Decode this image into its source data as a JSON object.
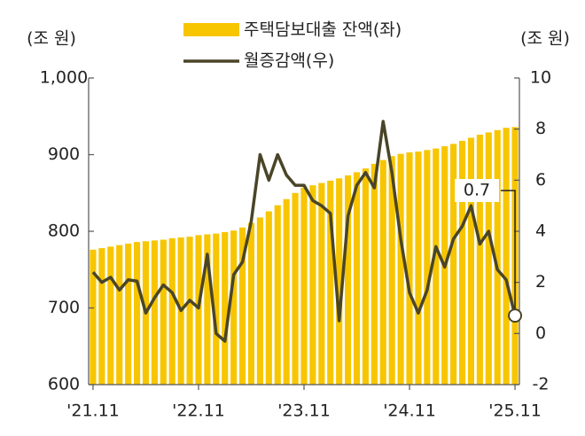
{
  "chart_data": {
    "type": "bar-line",
    "legend": "top",
    "y_label": "(조 원)",
    "y2_label": "(조 원)",
    "categories": [
      "'21.11",
      null,
      null,
      null,
      null,
      null,
      null,
      null,
      null,
      null,
      null,
      null,
      "'22.11",
      null,
      null,
      null,
      null,
      null,
      null,
      null,
      null,
      null,
      null,
      null,
      "'23.11",
      null,
      null,
      null,
      null,
      null,
      null,
      null,
      null,
      null,
      null,
      null,
      "'24.11",
      null,
      null,
      null,
      null,
      null,
      null,
      null,
      null,
      null,
      null,
      null,
      "'25.11"
    ],
    "series": [
      {
        "name": "주택담보대출 잔액(좌)",
        "type": "bar",
        "color": "#f7c600",
        "axis": "y",
        "values": [
          776,
          778,
          780,
          782,
          784,
          786,
          787,
          788,
          789,
          791,
          792,
          793,
          795,
          796,
          797,
          799,
          801,
          805,
          811,
          818,
          826,
          834,
          842,
          850,
          857,
          860,
          863,
          866,
          869,
          873,
          877,
          882,
          888,
          893,
          898,
          901,
          903,
          904,
          906,
          908,
          911,
          914,
          918,
          922,
          926,
          929,
          932,
          935,
          936
        ]
      },
      {
        "name": "월증감액(우)",
        "type": "line",
        "color": "#4a4528",
        "axis": "y2",
        "values": [
          2.4,
          2.0,
          2.2,
          1.7,
          2.1,
          2.05,
          0.8,
          1.4,
          1.9,
          1.6,
          0.9,
          1.3,
          1.0,
          3.1,
          0.0,
          -0.3,
          2.3,
          2.8,
          4.4,
          7.0,
          6.0,
          7.0,
          6.2,
          5.8,
          5.8,
          5.2,
          5.0,
          4.7,
          0.5,
          4.6,
          5.8,
          6.3,
          5.7,
          8.3,
          6.3,
          3.7,
          1.6,
          0.8,
          1.7,
          3.4,
          2.6,
          3.7,
          4.2,
          5.0,
          3.5,
          4.0,
          2.5,
          2.1,
          0.7
        ]
      }
    ],
    "ylim": [
      600,
      1000
    ],
    "yticks": [
      600,
      700,
      800,
      900,
      {
        "value": 1000,
        "label": "1,000"
      }
    ],
    "y2lim": [
      -2,
      10
    ],
    "y2ticks": [
      -2,
      0,
      2,
      4,
      6,
      8,
      10
    ]
  }
}
